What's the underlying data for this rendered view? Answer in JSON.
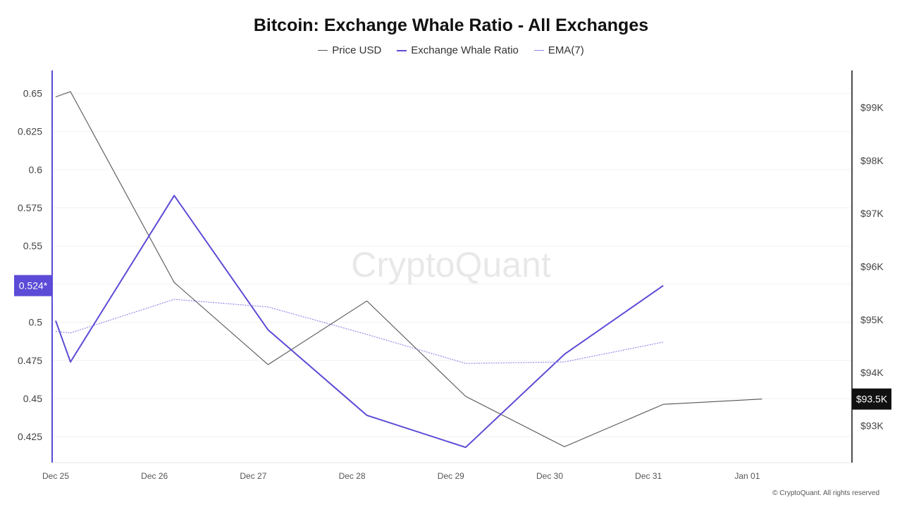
{
  "chart_data": {
    "type": "line",
    "title": "Bitcoin: Exchange Whale Ratio - All Exchanges",
    "x_tick_labels": [
      "Dec 25",
      "Dec 26",
      "Dec 27",
      "Dec 28",
      "Dec 29",
      "Dec 30",
      "Dec 31",
      "Jan 01"
    ],
    "y_left": {
      "ticks": [
        0.425,
        0.45,
        0.475,
        0.5,
        0.525,
        0.55,
        0.575,
        0.6,
        0.625,
        0.65
      ],
      "tick_labels": [
        "0.425",
        "0.45",
        "0.475",
        "0.5",
        "",
        "0.55",
        "0.575",
        "0.6",
        "0.625",
        "0.65"
      ],
      "range": [
        0.408,
        0.665
      ]
    },
    "y_right": {
      "ticks": [
        93000,
        94000,
        95000,
        96000,
        97000,
        98000,
        99000
      ],
      "tick_labels": [
        "$93K",
        "$94K",
        "$95K",
        "$96K",
        "$97K",
        "$98K",
        "$99K"
      ],
      "range": [
        92300,
        99700
      ]
    },
    "x_range": [
      0,
      8.1
    ],
    "series": [
      {
        "name": "Price USD",
        "axis": "right",
        "color": "#555555",
        "x": [
          0,
          0.15,
          1.2,
          2.15,
          3.15,
          4.15,
          5.15,
          6.15,
          7.15
        ],
        "values": [
          99200,
          99300,
          95700,
          94150,
          95350,
          93550,
          92600,
          93400,
          93500
        ]
      },
      {
        "name": "Exchange Whale Ratio",
        "axis": "left",
        "color": "#5b4bd6",
        "x": [
          0,
          0.15,
          1.2,
          2.15,
          3.15,
          4.15,
          5.15,
          6.15
        ],
        "values": [
          0.501,
          0.474,
          0.583,
          0.495,
          0.439,
          0.418,
          0.479,
          0.524
        ]
      },
      {
        "name": "EMA(7)",
        "axis": "left",
        "color": "#8b82e6",
        "dashed": true,
        "x": [
          0,
          0.15,
          1.2,
          2.15,
          3.15,
          4.15,
          5.15,
          6.15
        ],
        "values": [
          0.494,
          0.493,
          0.515,
          0.51,
          0.492,
          0.473,
          0.474,
          0.487
        ]
      }
    ],
    "current_value_labels": {
      "left": "0.524*",
      "right": "$93.5K",
      "left_value": 0.524,
      "right_value": 93500
    },
    "watermark": "CryptoQuant",
    "grid": true,
    "legend_position": "top-center"
  },
  "copyright": "© CryptoQuant. All rights reserved"
}
